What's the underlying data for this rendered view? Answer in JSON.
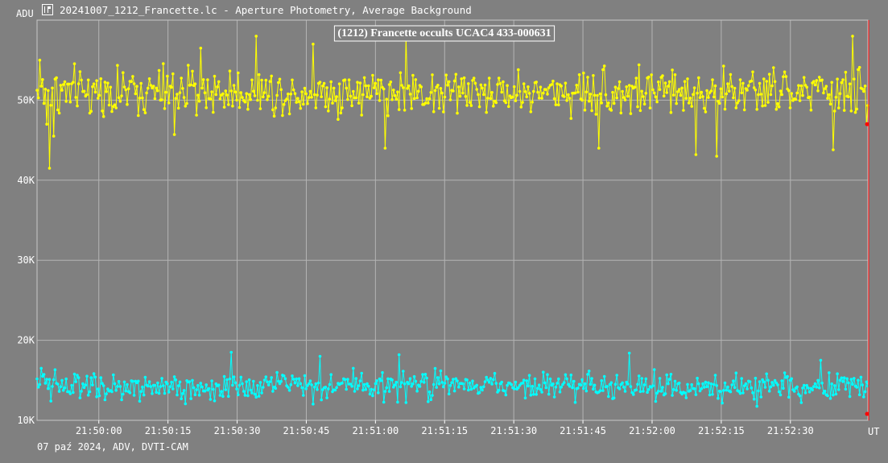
{
  "window": {
    "title": "20241007_1212_Francette.lc - Aperture Photometry, Average Background",
    "icon": "lightcurve-app-icon"
  },
  "footer": {
    "text": "07 paź 2024, ADV, DVTI-CAM"
  },
  "chart_data": {
    "type": "line",
    "title": "(1212) Francette occults UCAC4 433-000631",
    "ylabel": "ADU",
    "xlabel": "UT",
    "ylim": [
      10000,
      60000
    ],
    "y_ticks": [
      {
        "value": 10000,
        "label": "10K"
      },
      {
        "value": 20000,
        "label": "20K"
      },
      {
        "value": 30000,
        "label": "30K"
      },
      {
        "value": 40000,
        "label": "40K"
      },
      {
        "value": 50000,
        "label": "50K"
      }
    ],
    "x_start_time": "21:49:46.6",
    "x_end_time": "21:52:46.8",
    "x_ticks": [
      "21:50:00",
      "21:50:15",
      "21:50:30",
      "21:50:45",
      "21:51:00",
      "21:51:15",
      "21:51:30",
      "21:51:45",
      "21:52:00",
      "21:52:15",
      "21:52:30"
    ],
    "grid": true,
    "cursor_time": "21:52:47.3",
    "series": [
      {
        "color": "#ffff00",
        "marker": "circle",
        "points_count": 600,
        "mean_adu": 51000,
        "noise_adu": 2600,
        "min_adu": 41500,
        "max_adu": 58500,
        "visible_samples": [
          {
            "t": "21:49:47.1",
            "adu": 55000
          },
          {
            "t": "21:49:48.6",
            "adu": 47000
          },
          {
            "t": "21:49:49.3",
            "adu": 41500
          },
          {
            "t": "21:49:50.1",
            "adu": 45500
          },
          {
            "t": "21:50:16.3",
            "adu": 45700
          },
          {
            "t": "21:50:22.0",
            "adu": 56500
          },
          {
            "t": "21:50:34.1",
            "adu": 58000
          },
          {
            "t": "21:50:46.6",
            "adu": 57000
          },
          {
            "t": "21:51:02.0",
            "adu": 44000
          },
          {
            "t": "21:51:06.7",
            "adu": 58000
          },
          {
            "t": "21:51:48.4",
            "adu": 44000
          },
          {
            "t": "21:52:09.6",
            "adu": 43200
          },
          {
            "t": "21:52:14.0",
            "adu": 43000
          },
          {
            "t": "21:52:39.4",
            "adu": 43800
          },
          {
            "t": "21:52:43.4",
            "adu": 58000
          },
          {
            "t": "21:52:46.4",
            "adu": 47000
          }
        ]
      },
      {
        "color": "#00ffff",
        "marker": "circle",
        "points_count": 600,
        "mean_adu": 14300,
        "noise_adu": 1500,
        "min_adu": 10200,
        "max_adu": 18500,
        "visible_samples": [
          {
            "t": "21:49:47.6",
            "adu": 16500
          },
          {
            "t": "21:50:28.7",
            "adu": 18500
          },
          {
            "t": "21:50:47.9",
            "adu": 18000
          },
          {
            "t": "21:51:05.0",
            "adu": 18200
          },
          {
            "t": "21:51:55.2",
            "adu": 18400
          },
          {
            "t": "21:52:36.5",
            "adu": 17500
          },
          {
            "t": "21:52:46.4",
            "adu": 14800
          }
        ]
      }
    ]
  }
}
